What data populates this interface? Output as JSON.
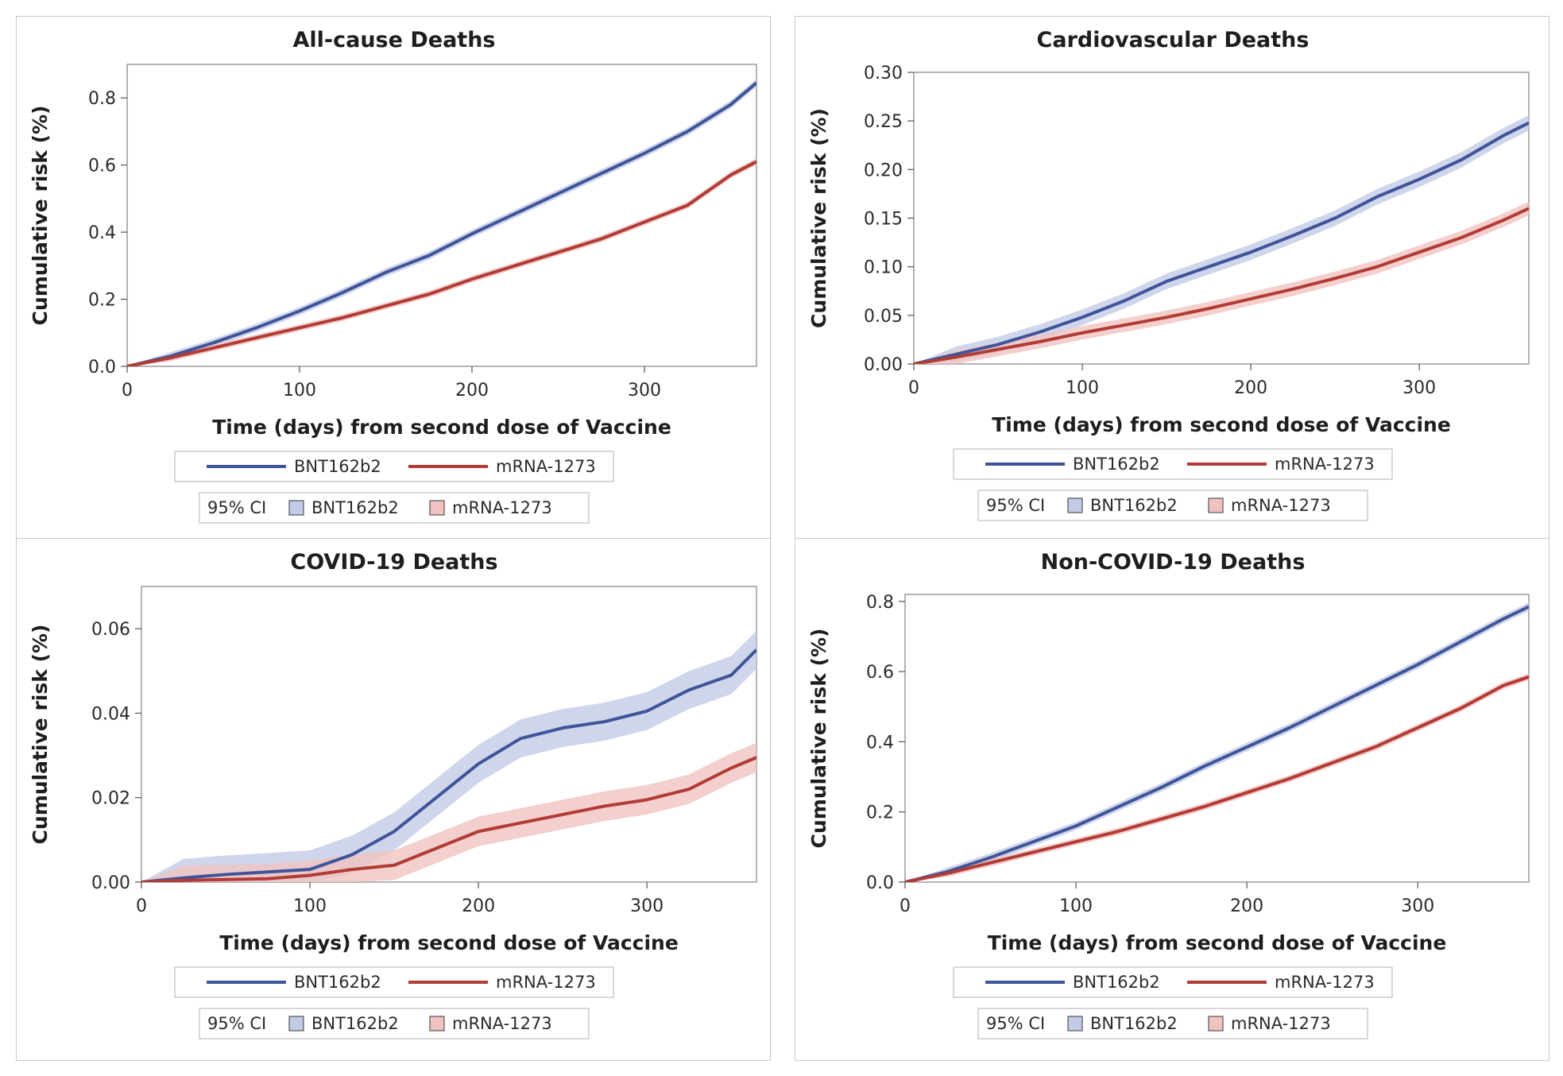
{
  "chart_data": [
    {
      "type": "line",
      "title": "All-cause Deaths",
      "xlabel": "Time (days) from second dose of Vaccine",
      "ylabel": "Cumulative risk (%)",
      "xlim": [
        0,
        365
      ],
      "ylim": [
        0,
        0.9
      ],
      "xticks": [
        "0",
        "100",
        "200",
        "300"
      ],
      "yticks": [
        "0.0",
        "0.2",
        "0.4",
        "0.6",
        "0.8"
      ],
      "ci_label": "95% CI",
      "series": [
        {
          "name": "BNT162b2",
          "color": "#3f5499",
          "band_color": "#c3cbe6",
          "x": [
            0,
            25,
            50,
            75,
            100,
            125,
            150,
            175,
            200,
            225,
            250,
            275,
            300,
            325,
            350,
            365
          ],
          "y": [
            0,
            0.03,
            0.07,
            0.115,
            0.165,
            0.22,
            0.28,
            0.33,
            0.395,
            0.455,
            0.515,
            0.575,
            0.635,
            0.7,
            0.78,
            0.845
          ],
          "ci": 0.012
        },
        {
          "name": "mRNA-1273",
          "color": "#b23c35",
          "band_color": "#f0c3c0",
          "x": [
            0,
            25,
            50,
            75,
            100,
            125,
            150,
            175,
            200,
            225,
            250,
            275,
            300,
            325,
            350,
            365
          ],
          "y": [
            0,
            0.025,
            0.055,
            0.085,
            0.115,
            0.145,
            0.18,
            0.215,
            0.26,
            0.3,
            0.34,
            0.38,
            0.43,
            0.48,
            0.57,
            0.61
          ],
          "ci": 0.01
        }
      ]
    },
    {
      "type": "line",
      "title": "Cardiovascular Deaths",
      "xlabel": "Time (days) from second dose of Vaccine",
      "ylabel": "Cumulative risk (%)",
      "xlim": [
        0,
        365
      ],
      "ylim": [
        0,
        0.3
      ],
      "xticks": [
        "0",
        "100",
        "200",
        "300"
      ],
      "yticks": [
        "0.00",
        "0.05",
        "0.10",
        "0.15",
        "0.20",
        "0.25",
        "0.30"
      ],
      "ci_label": "95% CI",
      "series": [
        {
          "name": "BNT162b2",
          "color": "#3f5499",
          "band_color": "#c3cbe6",
          "x": [
            0,
            25,
            50,
            75,
            100,
            125,
            150,
            175,
            200,
            225,
            250,
            275,
            300,
            325,
            350,
            365
          ],
          "y": [
            0,
            0.01,
            0.02,
            0.033,
            0.048,
            0.065,
            0.085,
            0.1,
            0.115,
            0.132,
            0.15,
            0.172,
            0.19,
            0.21,
            0.235,
            0.248
          ],
          "ci": 0.008
        },
        {
          "name": "mRNA-1273",
          "color": "#b23c35",
          "band_color": "#f0c3c0",
          "x": [
            0,
            25,
            50,
            75,
            100,
            125,
            150,
            175,
            200,
            225,
            250,
            275,
            300,
            325,
            350,
            365
          ],
          "y": [
            0,
            0.007,
            0.015,
            0.023,
            0.032,
            0.04,
            0.048,
            0.057,
            0.067,
            0.077,
            0.088,
            0.1,
            0.115,
            0.13,
            0.148,
            0.16
          ],
          "ci": 0.007
        }
      ]
    },
    {
      "type": "line",
      "title": "COVID-19 Deaths",
      "xlabel": "Time (days) from second dose of Vaccine",
      "ylabel": "Cumulative risk (%)",
      "xlim": [
        0,
        365
      ],
      "ylim": [
        0,
        0.07
      ],
      "xticks": [
        "0",
        "100",
        "200",
        "300"
      ],
      "yticks": [
        "0.00",
        "0.02",
        "0.04",
        "0.06"
      ],
      "ci_label": "95% CI",
      "series": [
        {
          "name": "BNT162b2",
          "color": "#3f5499",
          "band_color": "#c3cbe6",
          "x": [
            0,
            25,
            50,
            75,
            100,
            125,
            150,
            175,
            200,
            225,
            250,
            275,
            300,
            325,
            350,
            365
          ],
          "y": [
            0,
            0.001,
            0.0018,
            0.0024,
            0.003,
            0.0065,
            0.012,
            0.02,
            0.028,
            0.034,
            0.0365,
            0.038,
            0.0405,
            0.0455,
            0.049,
            0.055
          ],
          "ci": 0.0045
        },
        {
          "name": "mRNA-1273",
          "color": "#b23c35",
          "band_color": "#f0c3c0",
          "x": [
            0,
            25,
            50,
            75,
            100,
            125,
            150,
            175,
            200,
            225,
            250,
            275,
            300,
            325,
            350,
            365
          ],
          "y": [
            0,
            0.0004,
            0.0006,
            0.0008,
            0.0016,
            0.003,
            0.004,
            0.008,
            0.012,
            0.014,
            0.016,
            0.018,
            0.0195,
            0.022,
            0.027,
            0.0295
          ],
          "ci": 0.0035
        }
      ]
    },
    {
      "type": "line",
      "title": "Non-COVID-19 Deaths",
      "xlabel": "Time (days) from second dose of Vaccine",
      "ylabel": "Cumulative risk (%)",
      "xlim": [
        0,
        365
      ],
      "ylim": [
        0,
        0.82
      ],
      "xticks": [
        "0",
        "100",
        "200",
        "300"
      ],
      "yticks": [
        "0.0",
        "0.2",
        "0.4",
        "0.6",
        "0.8"
      ],
      "ci_label": "95% CI",
      "series": [
        {
          "name": "BNT162b2",
          "color": "#3f5499",
          "band_color": "#c3cbe6",
          "x": [
            0,
            25,
            50,
            75,
            100,
            125,
            150,
            175,
            200,
            225,
            250,
            275,
            300,
            325,
            350,
            365
          ],
          "y": [
            0,
            0.03,
            0.07,
            0.115,
            0.16,
            0.215,
            0.27,
            0.33,
            0.385,
            0.44,
            0.5,
            0.56,
            0.62,
            0.685,
            0.75,
            0.785
          ],
          "ci": 0.012
        },
        {
          "name": "mRNA-1273",
          "color": "#b23c35",
          "band_color": "#f0c3c0",
          "x": [
            0,
            25,
            50,
            75,
            100,
            125,
            150,
            175,
            200,
            225,
            250,
            275,
            300,
            325,
            350,
            365
          ],
          "y": [
            0,
            0.025,
            0.055,
            0.085,
            0.115,
            0.145,
            0.18,
            0.215,
            0.255,
            0.295,
            0.34,
            0.385,
            0.44,
            0.495,
            0.56,
            0.585
          ],
          "ci": 0.01
        }
      ]
    }
  ]
}
